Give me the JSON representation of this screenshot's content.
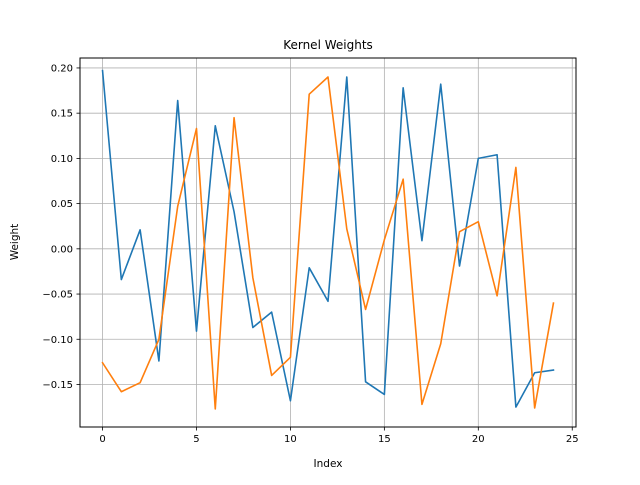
{
  "chart_data": {
    "type": "line",
    "title": "Kernel Weights",
    "xlabel": "Index",
    "ylabel": "Weight",
    "xlim": [
      -1.2,
      25.2
    ],
    "ylim": [
      -0.197,
      0.211
    ],
    "grid": true,
    "xticks": [
      0,
      5,
      10,
      15,
      20,
      25
    ],
    "xtick_labels": [
      "0",
      "5",
      "10",
      "15",
      "20",
      "25"
    ],
    "yticks": [
      -0.15,
      -0.1,
      -0.05,
      0.0,
      0.05,
      0.1,
      0.15,
      0.2
    ],
    "ytick_labels": [
      "−0.15",
      "−0.10",
      "−0.05",
      "0.00",
      "0.05",
      "0.10",
      "0.15",
      "0.20"
    ],
    "x": [
      0,
      1,
      2,
      3,
      4,
      5,
      6,
      7,
      8,
      9,
      10,
      11,
      12,
      13,
      14,
      15,
      16,
      17,
      18,
      19,
      20,
      21,
      22,
      23,
      24
    ],
    "series": [
      {
        "color": "#1f77b4",
        "values": [
          0.197,
          -0.034,
          0.021,
          -0.124,
          0.164,
          -0.091,
          0.136,
          0.041,
          -0.087,
          -0.07,
          -0.168,
          -0.021,
          -0.058,
          0.19,
          -0.147,
          -0.161,
          0.178,
          0.009,
          0.182,
          -0.019,
          0.1,
          0.104,
          -0.175,
          -0.137,
          -0.134
        ]
      },
      {
        "color": "#ff7f0e",
        "values": [
          -0.126,
          -0.158,
          -0.148,
          -0.1,
          0.047,
          0.133,
          -0.177,
          0.145,
          -0.032,
          -0.14,
          -0.12,
          0.171,
          0.19,
          0.022,
          -0.067,
          0.01,
          0.077,
          -0.172,
          -0.105,
          0.019,
          0.03,
          -0.052,
          0.09,
          -0.176,
          -0.06
        ]
      }
    ]
  }
}
